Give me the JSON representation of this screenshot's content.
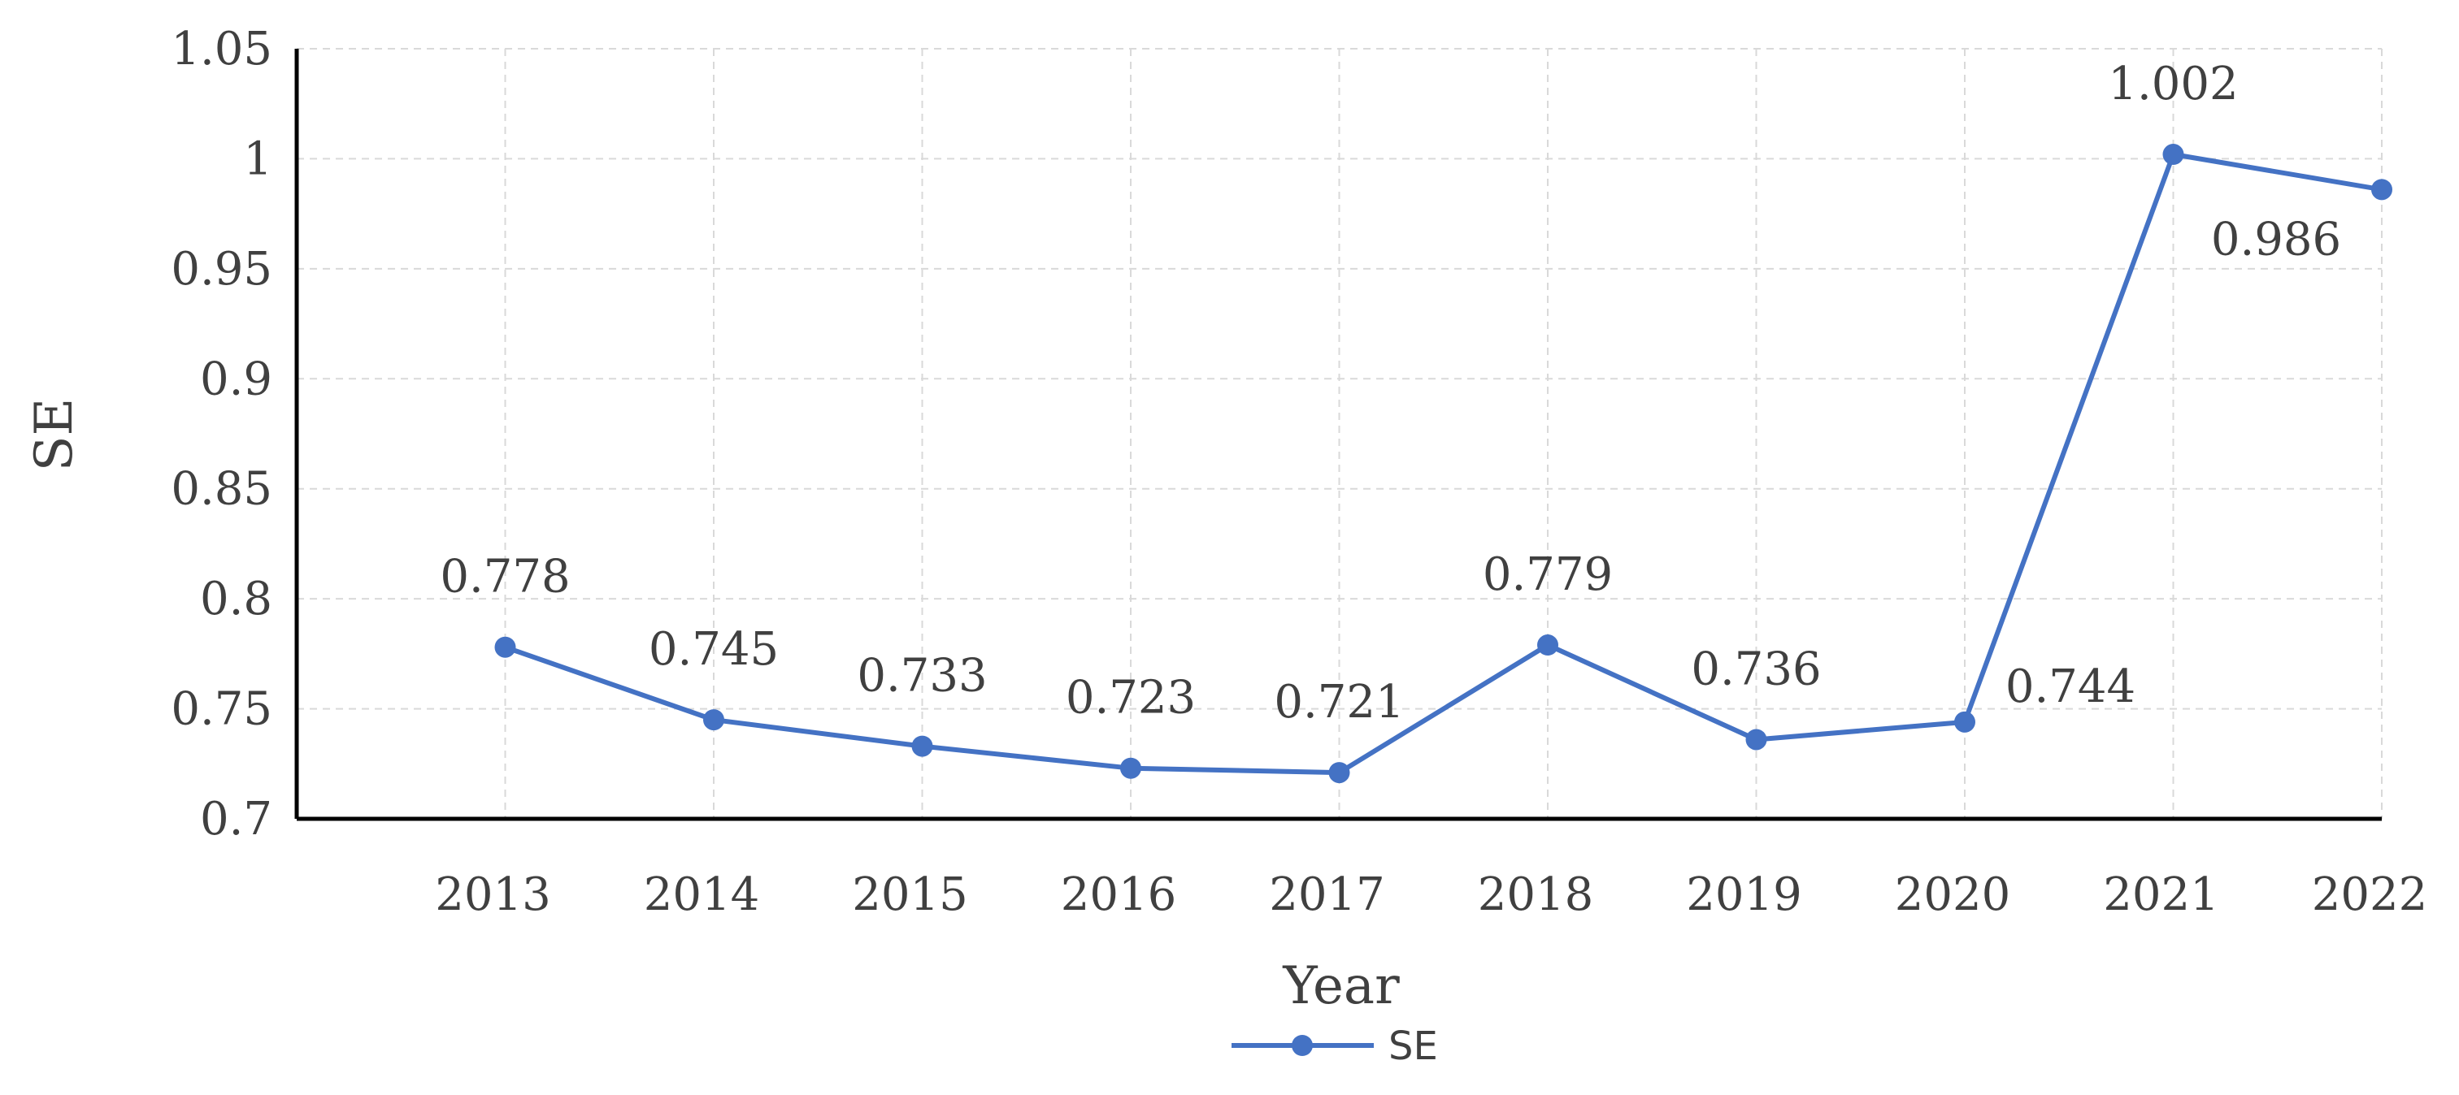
{
  "chart_data": {
    "type": "line",
    "xlabel": "Year",
    "ylabel": "SE",
    "categories": [
      "2013",
      "2014",
      "2015",
      "2016",
      "2017",
      "2018",
      "2019",
      "2020",
      "2021",
      "2022"
    ],
    "series": [
      {
        "name": "SE",
        "values": [
          0.778,
          0.745,
          0.733,
          0.723,
          0.721,
          0.779,
          0.736,
          0.744,
          1.002,
          0.986
        ],
        "labels": [
          "0.778",
          "0.745",
          "0.733",
          "0.723",
          "0.721",
          "0.779",
          "0.736",
          "0.744",
          "1.002",
          "0.986"
        ]
      }
    ],
    "ylim": [
      0.7,
      1.05
    ],
    "yticks": [
      "0.7",
      "0.75",
      "0.8",
      "0.85",
      "0.9",
      "0.95",
      "1",
      "1.05"
    ],
    "grid": true,
    "legend": "bottom",
    "colors": {
      "series": "#4472c4",
      "axis": "#000000",
      "grid": "#d9d9d9",
      "text": "#404040"
    }
  }
}
